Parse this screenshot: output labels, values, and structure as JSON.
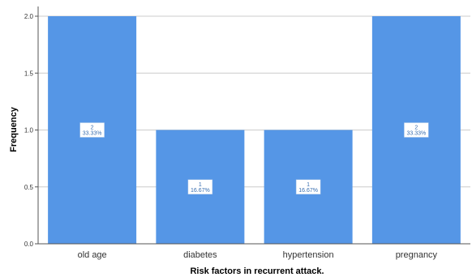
{
  "chart_data": {
    "type": "bar",
    "categories": [
      "old age",
      "diabetes",
      "hypertension",
      "pregnancy"
    ],
    "values": [
      2,
      1,
      1,
      2
    ],
    "data_labels": [
      {
        "count": "2",
        "percent": "33.33%"
      },
      {
        "count": "1",
        "percent": "16.67%"
      },
      {
        "count": "1",
        "percent": "16.67%"
      },
      {
        "count": "2",
        "percent": "33.33%"
      }
    ],
    "yticks": [
      "0.0",
      "0.5",
      "1.0",
      "1.5",
      "2.0"
    ],
    "ylim": [
      0,
      2.0
    ],
    "xlabel": "Risk factors in recurrent attack.",
    "ylabel": "Frequency",
    "grid": true,
    "colors": {
      "bar": "#5596e6",
      "grid": "#cccccc",
      "axis": "#555555"
    }
  }
}
